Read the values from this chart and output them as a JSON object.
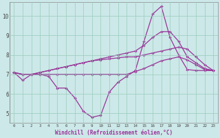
{
  "title": "",
  "xlabel": "Windchill (Refroidissement éolien,°C)",
  "background_color": "#cce8e8",
  "line_color": "#993399",
  "grid_color": "#99ccbb",
  "xlim": [
    -0.5,
    23.5
  ],
  "ylim": [
    4.5,
    10.7
  ],
  "yticks": [
    5,
    6,
    7,
    8,
    9,
    10
  ],
  "xticks": [
    0,
    1,
    2,
    3,
    4,
    5,
    6,
    7,
    8,
    9,
    10,
    11,
    12,
    13,
    14,
    15,
    16,
    17,
    18,
    19,
    20,
    21,
    22,
    23
  ],
  "line1": [
    7.1,
    6.7,
    7.0,
    7.0,
    6.9,
    6.3,
    6.3,
    5.8,
    5.1,
    4.8,
    4.9,
    6.1,
    6.6,
    6.9,
    7.2,
    8.7,
    10.1,
    10.5,
    8.9,
    8.0,
    7.25,
    7.2,
    7.2,
    7.2
  ],
  "line2": [
    7.1,
    7.0,
    7.0,
    7.0,
    7.0,
    7.0,
    7.0,
    7.0,
    7.0,
    7.0,
    7.0,
    7.0,
    7.0,
    7.0,
    7.15,
    7.3,
    7.5,
    7.7,
    7.8,
    7.9,
    7.75,
    7.5,
    7.25,
    7.2
  ],
  "line3": [
    7.1,
    7.0,
    7.0,
    7.1,
    7.2,
    7.3,
    7.4,
    7.5,
    7.6,
    7.7,
    7.8,
    7.9,
    8.0,
    8.1,
    8.2,
    8.5,
    8.9,
    9.2,
    9.2,
    8.7,
    7.9,
    7.6,
    7.3,
    7.2
  ],
  "line4": [
    7.1,
    7.0,
    7.0,
    7.1,
    7.2,
    7.3,
    7.4,
    7.5,
    7.6,
    7.7,
    7.75,
    7.8,
    7.85,
    7.9,
    7.9,
    8.0,
    8.1,
    8.2,
    8.3,
    8.4,
    8.3,
    7.9,
    7.5,
    7.2
  ],
  "marker": "D",
  "markersize": 2.2,
  "linewidth": 0.9
}
